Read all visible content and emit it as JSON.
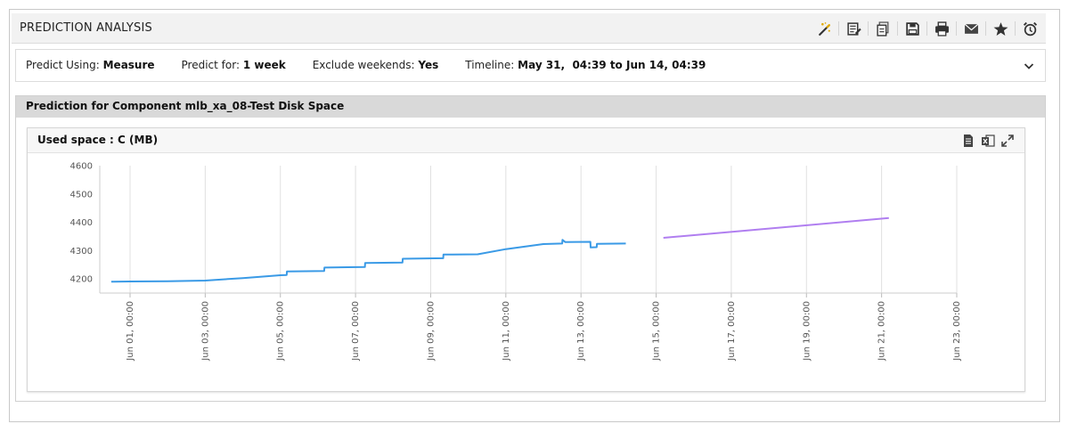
{
  "header": {
    "title": "PREDICTION ANALYSIS",
    "toolbar": [
      {
        "icon": "magic-wand-icon",
        "name": "wizard-button"
      },
      {
        "icon": "edit-report-icon",
        "name": "edit-report-button"
      },
      {
        "icon": "copy-report-icon",
        "name": "copy-report-button"
      },
      {
        "icon": "save-icon",
        "name": "save-button"
      },
      {
        "icon": "print-icon",
        "name": "print-button"
      },
      {
        "icon": "mail-icon",
        "name": "email-button"
      },
      {
        "icon": "star-icon",
        "name": "favorite-button"
      },
      {
        "icon": "alarm-clock-icon",
        "name": "schedule-button"
      }
    ]
  },
  "filters": {
    "predict_using": {
      "label": "Predict Using:",
      "value": "Measure"
    },
    "predict_for": {
      "label": "Predict for:",
      "value": "1 week"
    },
    "exclude_weekends": {
      "label": "Exclude weekends:",
      "value": "Yes"
    },
    "timeline": {
      "label": "Timeline:",
      "value": "May 31,  04:39 to Jun 14, 04:39"
    }
  },
  "section": {
    "title": "Prediction for Component mlb_xa_08-Test Disk Space"
  },
  "panel": {
    "title": "Used space : C (MB)",
    "tools": [
      "document-icon",
      "excel-icon",
      "expand-icon"
    ]
  },
  "chart_data": {
    "type": "line",
    "title": "Used space : C (MB)",
    "xlabel": "",
    "ylabel": "",
    "x_axis": "date",
    "x_ticks": [
      "Jun 01, 00:00",
      "Jun 03, 00:00",
      "Jun 05, 00:00",
      "Jun 07, 00:00",
      "Jun 09, 00:00",
      "Jun 11, 00:00",
      "Jun 13, 00:00",
      "Jun 15, 00:00",
      "Jun 17, 00:00",
      "Jun 19, 00:00",
      "Jun 21, 00:00",
      "Jun 23, 00:00"
    ],
    "y_ticks": [
      4200,
      4300,
      4400,
      4500,
      4600
    ],
    "xlim": [
      "May 31, 04:39",
      "Jun 23, 00:00"
    ],
    "ylim": [
      4150,
      4600
    ],
    "grid": "vertical",
    "series": [
      {
        "color": "#3a9ae6",
        "role": "actual",
        "points": [
          [
            "May 31, 12:00",
            4190
          ],
          [
            "Jun 01, 00:00",
            4191
          ],
          [
            "Jun 02, 00:00",
            4192
          ],
          [
            "Jun 03, 00:00",
            4194
          ],
          [
            "Jun 04, 00:00",
            4203
          ],
          [
            "Jun 05, 00:00",
            4213
          ],
          [
            "Jun 05, 04:00",
            4214
          ],
          [
            "Jun 05, 04:10",
            4226
          ],
          [
            "Jun 06, 04:00",
            4228
          ],
          [
            "Jun 06, 04:10",
            4240
          ],
          [
            "Jun 07, 06:00",
            4242
          ],
          [
            "Jun 07, 06:10",
            4256
          ],
          [
            "Jun 08, 06:00",
            4258
          ],
          [
            "Jun 08, 06:10",
            4271
          ],
          [
            "Jun 09, 08:00",
            4273
          ],
          [
            "Jun 09, 08:10",
            4286
          ],
          [
            "Jun 10, 06:00",
            4287
          ],
          [
            "Jun 11, 00:00",
            4305
          ],
          [
            "Jun 12, 00:00",
            4323
          ],
          [
            "Jun 12, 12:00",
            4325
          ],
          [
            "Jun 12, 12:10",
            4338
          ],
          [
            "Jun 12, 14:00",
            4330
          ],
          [
            "Jun 13, 06:00",
            4331
          ],
          [
            "Jun 13, 06:10",
            4311
          ],
          [
            "Jun 13, 10:00",
            4312
          ],
          [
            "Jun 13, 10:10",
            4324
          ],
          [
            "Jun 14, 04:39",
            4325
          ]
        ]
      },
      {
        "color": "#b07ef0",
        "role": "predicted",
        "points": [
          [
            "Jun 15, 04:39",
            4345
          ],
          [
            "Jun 21, 04:39",
            4415
          ]
        ]
      }
    ]
  }
}
